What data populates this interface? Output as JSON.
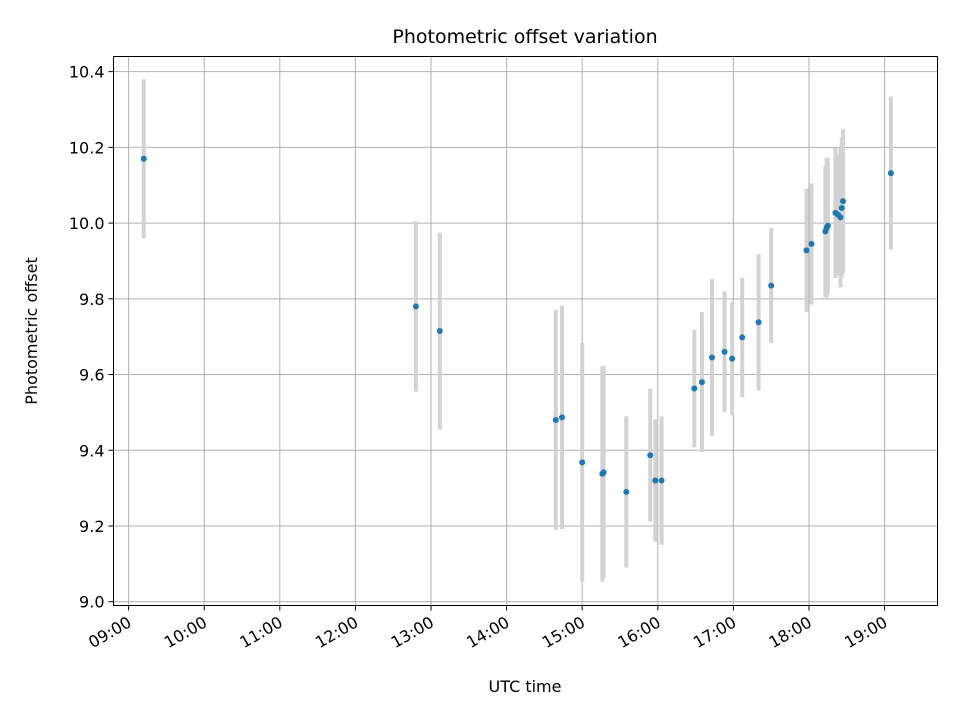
{
  "chart_data": {
    "type": "scatter",
    "title": "Photometric offset variation",
    "xlabel": "UTC time",
    "ylabel": "Photometric offset",
    "grid": true,
    "xlim": [
      "08:48",
      "19:42"
    ],
    "ylim": [
      8.99,
      10.44
    ],
    "x_ticks": [
      "09:00",
      "10:00",
      "11:00",
      "12:00",
      "13:00",
      "14:00",
      "15:00",
      "16:00",
      "17:00",
      "18:00",
      "19:00"
    ],
    "y_ticks": [
      "9.0",
      "9.2",
      "9.4",
      "9.6",
      "9.8",
      "10.0",
      "10.2",
      "10.4"
    ],
    "y_tick_values": [
      9.0,
      9.2,
      9.4,
      9.6,
      9.8,
      10.0,
      10.2,
      10.4
    ],
    "colors": {
      "point": "#1f77b4",
      "errorbar": "#d3d3d3"
    },
    "points": [
      {
        "time": "09:12",
        "y": 10.17,
        "err": 0.21
      },
      {
        "time": "12:48",
        "y": 9.78,
        "err": 0.225
      },
      {
        "time": "13:07",
        "y": 9.715,
        "err": 0.26
      },
      {
        "time": "14:39",
        "y": 9.48,
        "err": 0.29
      },
      {
        "time": "14:44",
        "y": 9.487,
        "err": 0.295
      },
      {
        "time": "15:00",
        "y": 9.368,
        "err": 0.315
      },
      {
        "time": "15:16",
        "y": 9.338,
        "err": 0.285
      },
      {
        "time": "15:17",
        "y": 9.342,
        "err": 0.28
      },
      {
        "time": "15:35",
        "y": 9.29,
        "err": 0.2
      },
      {
        "time": "15:54",
        "y": 9.387,
        "err": 0.175
      },
      {
        "time": "15:58",
        "y": 9.32,
        "err": 0.162
      },
      {
        "time": "16:03",
        "y": 9.32,
        "err": 0.17
      },
      {
        "time": "16:29",
        "y": 9.563,
        "err": 0.155
      },
      {
        "time": "16:35",
        "y": 9.58,
        "err": 0.185
      },
      {
        "time": "16:43",
        "y": 9.645,
        "err": 0.207
      },
      {
        "time": "16:53",
        "y": 9.66,
        "err": 0.16
      },
      {
        "time": "16:59",
        "y": 9.642,
        "err": 0.15
      },
      {
        "time": "17:07",
        "y": 9.698,
        "err": 0.158
      },
      {
        "time": "17:20",
        "y": 9.738,
        "err": 0.18
      },
      {
        "time": "17:30",
        "y": 9.835,
        "err": 0.152
      },
      {
        "time": "17:58",
        "y": 9.928,
        "err": 0.163
      },
      {
        "time": "18:02",
        "y": 9.945,
        "err": 0.16
      },
      {
        "time": "18:13",
        "y": 9.978,
        "err": 0.173
      },
      {
        "time": "18:14",
        "y": 9.988,
        "err": 0.185
      },
      {
        "time": "18:15",
        "y": 9.993,
        "err": 0.18
      },
      {
        "time": "18:21",
        "y": 10.027,
        "err": 0.172
      },
      {
        "time": "18:23",
        "y": 10.022,
        "err": 0.16
      },
      {
        "time": "18:25",
        "y": 10.015,
        "err": 0.185
      },
      {
        "time": "18:26",
        "y": 10.04,
        "err": 0.185
      },
      {
        "time": "18:27",
        "y": 10.058,
        "err": 0.19
      },
      {
        "time": "19:05",
        "y": 10.132,
        "err": 0.202
      }
    ]
  }
}
